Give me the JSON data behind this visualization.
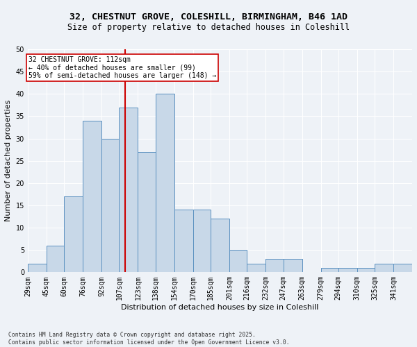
{
  "title_line1": "32, CHESTNUT GROVE, COLESHILL, BIRMINGHAM, B46 1AD",
  "title_line2": "Size of property relative to detached houses in Coleshill",
  "xlabel": "Distribution of detached houses by size in Coleshill",
  "ylabel": "Number of detached properties",
  "footer": "Contains HM Land Registry data © Crown copyright and database right 2025.\nContains public sector information licensed under the Open Government Licence v3.0.",
  "bin_labels": [
    "29sqm",
    "45sqm",
    "60sqm",
    "76sqm",
    "92sqm",
    "107sqm",
    "123sqm",
    "138sqm",
    "154sqm",
    "170sqm",
    "185sqm",
    "201sqm",
    "216sqm",
    "232sqm",
    "247sqm",
    "263sqm",
    "279sqm",
    "294sqm",
    "310sqm",
    "325sqm",
    "341sqm"
  ],
  "bin_edges": [
    29,
    45,
    60,
    76,
    92,
    107,
    123,
    138,
    154,
    170,
    185,
    201,
    216,
    232,
    247,
    263,
    279,
    294,
    310,
    325,
    341
  ],
  "bar_heights": [
    2,
    6,
    17,
    34,
    30,
    37,
    27,
    40,
    14,
    14,
    12,
    5,
    2,
    3,
    3,
    0,
    1,
    1,
    1,
    2,
    2
  ],
  "bar_color": "#c8d8e8",
  "bar_edgecolor": "#5a90c0",
  "property_value": 112,
  "vline_color": "#cc0000",
  "annotation_text": "32 CHESTNUT GROVE: 112sqm\n← 40% of detached houses are smaller (99)\n59% of semi-detached houses are larger (148) →",
  "annotation_box_edgecolor": "#cc0000",
  "annotation_box_facecolor": "white",
  "ylim": [
    0,
    50
  ],
  "yticks": [
    0,
    5,
    10,
    15,
    20,
    25,
    30,
    35,
    40,
    45,
    50
  ],
  "bg_color": "#eef2f7",
  "grid_color": "white",
  "title_fontsize": 9.5,
  "subtitle_fontsize": 8.5,
  "axis_label_fontsize": 8,
  "tick_fontsize": 7,
  "footer_fontsize": 5.8
}
